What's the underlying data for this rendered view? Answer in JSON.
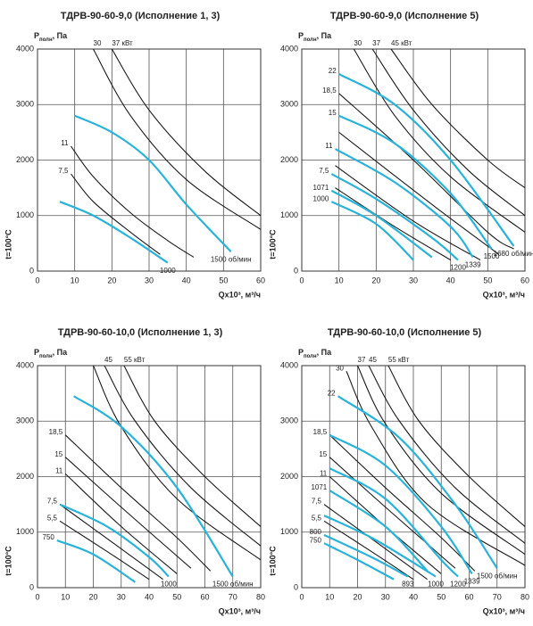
{
  "chart_data": [
    {
      "type": "line",
      "title": "ТДРВ-90-60-9,0 (Исполнение 1, 3)",
      "y_label": "P",
      "y_label_sub": "полн",
      "y_label_unit": ", Па",
      "x_label": "Qx10³, м³/ч",
      "side_label": "t=100°C",
      "xlim": [
        0,
        60
      ],
      "xticks": [
        0,
        10,
        20,
        30,
        40,
        50,
        60
      ],
      "ylim": [
        0,
        4000
      ],
      "yticks": [
        0,
        1000,
        2000,
        3000,
        4000
      ],
      "grid": true,
      "series": [
        {
          "color": "#1a1a1a",
          "label_start": "30",
          "x": [
            15,
            25,
            40,
            60
          ],
          "values": [
            4000,
            2800,
            1650,
            750
          ]
        },
        {
          "color": "#1a1a1a",
          "label_start": "37 кВт",
          "x": [
            20,
            30,
            45,
            60
          ],
          "values": [
            4000,
            2900,
            1800,
            1000
          ]
        },
        {
          "color": "#1a1a1a",
          "label_start": "11",
          "x": [
            9,
            15,
            25,
            35,
            42
          ],
          "values": [
            2250,
            1700,
            1050,
            550,
            250
          ]
        },
        {
          "color": "#1a1a1a",
          "label_start": "7,5",
          "x": [
            9,
            15,
            25,
            33
          ],
          "values": [
            1750,
            1250,
            700,
            300
          ]
        },
        {
          "color": "#29b3d8",
          "label_end": "1500 об/мин",
          "x": [
            10,
            20,
            30,
            40,
            52
          ],
          "values": [
            2800,
            2500,
            2000,
            1200,
            350
          ]
        },
        {
          "color": "#29b3d8",
          "label_end": "1000",
          "x": [
            6,
            15,
            25,
            35
          ],
          "values": [
            1250,
            1000,
            600,
            150
          ]
        }
      ]
    },
    {
      "type": "line",
      "title": "ТДРВ-90-60-9,0 (Исполнение 5)",
      "y_label": "P",
      "y_label_sub": "полн",
      "y_label_unit": ", Па",
      "x_label": "Qx10³, м³/ч",
      "side_label": "t=100°C",
      "xlim": [
        0,
        60
      ],
      "xticks": [
        0,
        10,
        20,
        30,
        40,
        50,
        60
      ],
      "ylim": [
        0,
        4000
      ],
      "yticks": [
        0,
        1000,
        2000,
        3000,
        4000
      ],
      "grid": true,
      "series": [
        {
          "color": "#1a1a1a",
          "label_start": "30",
          "x": [
            14,
            25,
            40,
            60
          ],
          "values": [
            4000,
            2800,
            1700,
            700
          ]
        },
        {
          "color": "#1a1a1a",
          "label_start": "37",
          "x": [
            19,
            30,
            45,
            60
          ],
          "values": [
            4000,
            2900,
            1800,
            1000
          ]
        },
        {
          "color": "#1a1a1a",
          "label_start": "45 кВт",
          "x": [
            24,
            35,
            50,
            60
          ],
          "values": [
            4000,
            3000,
            2000,
            1500
          ]
        },
        {
          "color": "#1a1a1a",
          "label_start": "18,5",
          "x": [
            10,
            30,
            50,
            57
          ],
          "values": [
            3200,
            2000,
            700,
            400
          ]
        },
        {
          "color": "#1a1a1a",
          "x": [
            10,
            35,
            53
          ],
          "values": [
            2500,
            1200,
            300
          ]
        },
        {
          "color": "#1a1a1a",
          "x": [
            9,
            30,
            48
          ],
          "values": [
            1900,
            900,
            200
          ]
        },
        {
          "color": "#1a1a1a",
          "x": [
            9,
            25,
            40
          ],
          "values": [
            1500,
            800,
            200
          ]
        },
        {
          "color": "#29b3d8",
          "label_start": "22",
          "label_end": "1680 об/мин",
          "x": [
            10,
            25,
            40,
            57
          ],
          "values": [
            3550,
            3000,
            2000,
            450
          ]
        },
        {
          "color": "#29b3d8",
          "label_start": "15",
          "label_end": "1500",
          "x": [
            10,
            25,
            40,
            51
          ],
          "values": [
            2800,
            2300,
            1400,
            400
          ]
        },
        {
          "color": "#29b3d8",
          "label_start": "11",
          "label_end": "1339",
          "x": [
            9,
            25,
            40,
            46
          ],
          "values": [
            2200,
            1600,
            800,
            250
          ]
        },
        {
          "color": "#29b3d8",
          "label_start": "7,5",
          "label_end": "1200",
          "x": [
            8,
            20,
            35,
            42
          ],
          "values": [
            1750,
            1300,
            600,
            200
          ]
        },
        {
          "color": "#29b3d8",
          "label_start": "1071",
          "x": [
            8,
            20,
            35
          ],
          "values": [
            1450,
            1000,
            250
          ]
        },
        {
          "color": "#29b3d8",
          "label_start": "1000",
          "x": [
            8,
            20,
            30
          ],
          "values": [
            1250,
            850,
            200
          ]
        }
      ]
    },
    {
      "type": "line",
      "title": "ТДРВ-90-60-10,0 (Исполнение 1, 3)",
      "y_label": "P",
      "y_label_sub": "полн",
      "y_label_unit": ", Па",
      "x_label": "Qx10³, м³/ч",
      "side_label": "t=100°C",
      "xlim": [
        0,
        80
      ],
      "xticks": [
        0,
        10,
        20,
        30,
        40,
        50,
        60,
        70,
        80
      ],
      "ylim": [
        0,
        4000
      ],
      "yticks": [
        0,
        1000,
        2000,
        3000,
        4000
      ],
      "grid": true,
      "series": [
        {
          "color": "#1a1a1a",
          "x": [
            20,
            30,
            50,
            80
          ],
          "values": [
            4000,
            2900,
            1600,
            500
          ]
        },
        {
          "color": "#1a1a1a",
          "label_start": "45",
          "x": [
            24,
            35,
            55,
            80
          ],
          "values": [
            4000,
            3000,
            1800,
            750
          ]
        },
        {
          "color": "#1a1a1a",
          "label_start": "55 кВт",
          "x": [
            31,
            42,
            60,
            80
          ],
          "values": [
            4000,
            3000,
            2000,
            1100
          ]
        },
        {
          "color": "#1a1a1a",
          "label_start": "18,5",
          "x": [
            10,
            30,
            50,
            62
          ],
          "values": [
            2750,
            1800,
            900,
            300
          ]
        },
        {
          "color": "#1a1a1a",
          "label_start": "15",
          "x": [
            10,
            30,
            55
          ],
          "values": [
            2350,
            1450,
            350
          ]
        },
        {
          "color": "#1a1a1a",
          "label_start": "11",
          "x": [
            10,
            30,
            50
          ],
          "values": [
            2050,
            1100,
            250
          ]
        },
        {
          "color": "#1a1a1a",
          "label_start": "7,5",
          "x": [
            8,
            30,
            45
          ],
          "values": [
            1500,
            700,
            150
          ]
        },
        {
          "color": "#1a1a1a",
          "label_start": "5,5",
          "x": [
            8,
            25,
            40
          ],
          "values": [
            1200,
            650,
            150
          ]
        },
        {
          "color": "#29b3d8",
          "label_end": "1500 об/мин",
          "x": [
            13,
            30,
            50,
            70
          ],
          "values": [
            3450,
            2900,
            1800,
            200
          ]
        },
        {
          "color": "#29b3d8",
          "label_end": "1000",
          "x": [
            8,
            25,
            40,
            47
          ],
          "values": [
            1500,
            1100,
            550,
            200
          ]
        },
        {
          "color": "#29b3d8",
          "label_start": "750",
          "x": [
            7,
            20,
            35
          ],
          "values": [
            850,
            600,
            100
          ]
        }
      ]
    },
    {
      "type": "line",
      "title": "ТДРВ-90-60-10,0 (Исполнение 5)",
      "y_label": "P",
      "y_label_sub": "полн",
      "y_label_unit": ", Па",
      "x_label": "Qx10³, м³/ч",
      "side_label": "t=100°C",
      "xlim": [
        0,
        80
      ],
      "xticks": [
        0,
        10,
        20,
        30,
        40,
        50,
        60,
        70,
        80
      ],
      "ylim": [
        0,
        4000
      ],
      "yticks": [
        0,
        1000,
        2000,
        3000,
        4000
      ],
      "grid": true,
      "series": [
        {
          "color": "#1a1a1a",
          "label_start": "30",
          "x": [
            16,
            25,
            45,
            80
          ],
          "values": [
            3900,
            2900,
            1500,
            400
          ]
        },
        {
          "color": "#1a1a1a",
          "label_start": "37",
          "x": [
            20,
            30,
            50,
            80
          ],
          "values": [
            4000,
            2950,
            1700,
            600
          ]
        },
        {
          "color": "#1a1a1a",
          "label_start": "45",
          "x": [
            24,
            35,
            55,
            80
          ],
          "values": [
            4000,
            3000,
            1800,
            800
          ]
        },
        {
          "color": "#1a1a1a",
          "label_start": "55 кВт",
          "x": [
            31,
            42,
            60,
            80
          ],
          "values": [
            4000,
            3000,
            2000,
            1100
          ]
        },
        {
          "color": "#1a1a1a",
          "label_start": "18,5",
          "x": [
            10,
            30,
            50,
            62
          ],
          "values": [
            2750,
            1800,
            900,
            300
          ]
        },
        {
          "color": "#1a1a1a",
          "label_start": "15",
          "x": [
            10,
            30,
            55
          ],
          "values": [
            2350,
            1450,
            350
          ]
        },
        {
          "color": "#1a1a1a",
          "label_start": "11",
          "x": [
            10,
            30,
            50
          ],
          "values": [
            2000,
            1100,
            250
          ]
        },
        {
          "color": "#1a1a1a",
          "label_start": "7,5",
          "x": [
            8,
            30,
            45
          ],
          "values": [
            1500,
            700,
            150
          ]
        },
        {
          "color": "#1a1a1a",
          "label_start": "5,5",
          "x": [
            8,
            25,
            40
          ],
          "values": [
            1200,
            650,
            150
          ]
        },
        {
          "color": "#29b3d8",
          "label_start": "22",
          "label_end": "1500 об/мин",
          "x": [
            13,
            35,
            55,
            70
          ],
          "values": [
            3450,
            2700,
            1500,
            350
          ]
        },
        {
          "color": "#29b3d8",
          "label_end": "1339",
          "x": [
            10,
            30,
            50,
            61
          ],
          "values": [
            2750,
            2200,
            1100,
            250
          ]
        },
        {
          "color": "#29b3d8",
          "label_end": "1200",
          "x": [
            10,
            30,
            50,
            56
          ],
          "values": [
            2150,
            1600,
            500,
            200
          ]
        },
        {
          "color": "#29b3d8",
          "label_start": "1071",
          "x": [
            10,
            30,
            45
          ],
          "values": [
            1750,
            1100,
            300
          ]
        },
        {
          "color": "#29b3d8",
          "label_end": "1000",
          "x": [
            8,
            25,
            40,
            48
          ],
          "values": [
            1300,
            900,
            450,
            200
          ]
        },
        {
          "color": "#29b3d8",
          "label_start": "800",
          "label_end": "893",
          "x": [
            8,
            25,
            38
          ],
          "values": [
            950,
            550,
            200
          ]
        },
        {
          "color": "#29b3d8",
          "label_start": "750",
          "x": [
            8,
            20,
            33
          ],
          "values": [
            800,
            500,
            150
          ]
        }
      ]
    }
  ]
}
